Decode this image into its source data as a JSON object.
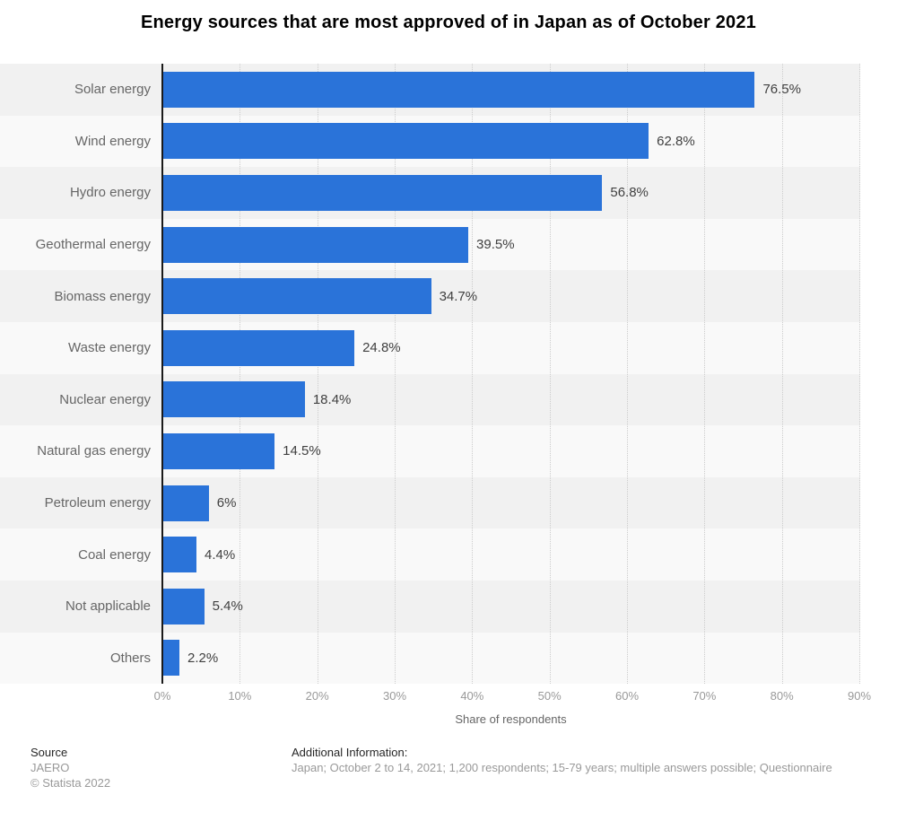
{
  "title": "Energy sources that are most approved of in Japan as of October 2021",
  "chart_data": {
    "type": "bar",
    "orientation": "horizontal",
    "title": "Energy sources that are most approved of in Japan as of October 2021",
    "categories": [
      "Solar energy",
      "Wind energy",
      "Hydro energy",
      "Geothermal energy",
      "Biomass energy",
      "Waste energy",
      "Nuclear energy",
      "Natural gas energy",
      "Petroleum energy",
      "Coal energy",
      "Not applicable",
      "Others"
    ],
    "values": [
      76.5,
      62.8,
      56.8,
      39.5,
      34.7,
      24.8,
      18.4,
      14.5,
      6,
      4.4,
      5.4,
      2.2
    ],
    "value_labels": [
      "76.5%",
      "62.8%",
      "56.8%",
      "39.5%",
      "34.7%",
      "24.8%",
      "18.4%",
      "14.5%",
      "6%",
      "4.4%",
      "5.4%",
      "2.2%"
    ],
    "xlabel": "Share of respondents",
    "ylabel": "",
    "xlim": [
      0,
      90
    ],
    "x_ticks": [
      "0%",
      "10%",
      "20%",
      "30%",
      "40%",
      "50%",
      "60%",
      "70%",
      "80%",
      "90%"
    ],
    "grid": "vertical dotted gridlines at each 10%",
    "legend": "none",
    "bar_color": "#2a73d9"
  },
  "footer": {
    "source_heading": "Source",
    "source_name": "JAERO",
    "copyright": "© Statista 2022",
    "additional_heading": "Additional Information:",
    "additional_text": "Japan; October 2 to 14, 2021; 1,200 respondents; 15-79 years; multiple answers possible; Questionnaire"
  }
}
